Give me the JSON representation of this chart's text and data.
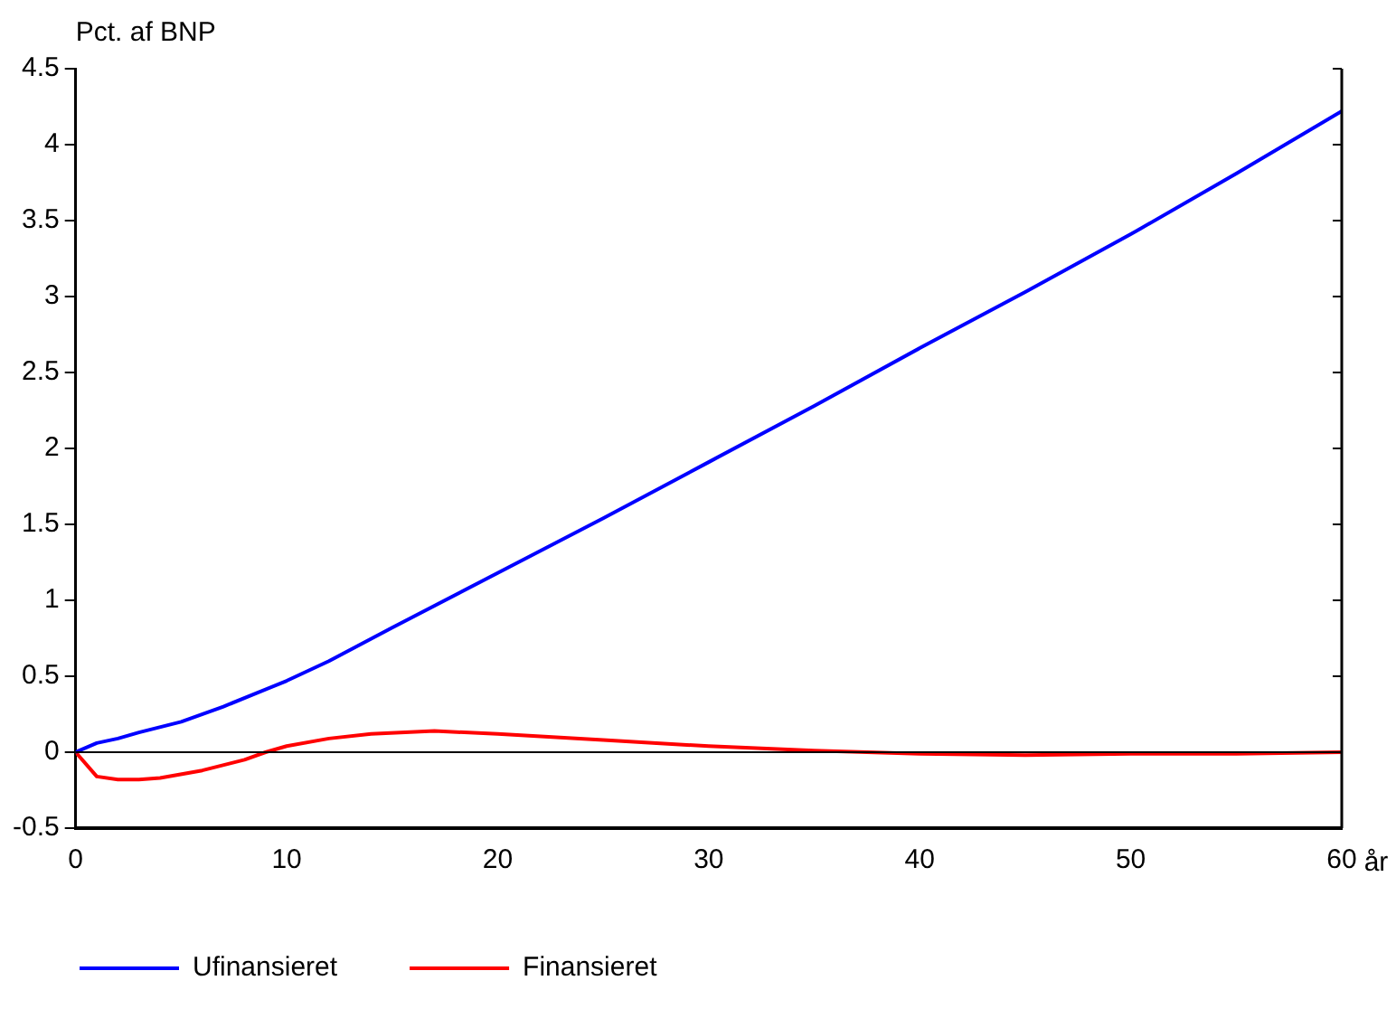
{
  "chart_data": {
    "type": "line",
    "ylabel": "Pct. af BNP",
    "xlabel": "år",
    "xlim": [
      0,
      60
    ],
    "xticks": [
      0,
      10,
      20,
      30,
      40,
      50,
      60
    ],
    "ylim": [
      -0.5,
      4.5
    ],
    "yticks": [
      -0.5,
      0,
      0.5,
      1,
      1.5,
      2,
      2.5,
      3,
      3.5,
      4,
      4.5
    ],
    "grid": false,
    "legend": "bottom",
    "marker": "none",
    "line_style": "solid",
    "ref_lines": [
      {
        "axis": "y",
        "value": 0,
        "color": "#000000"
      }
    ],
    "series": [
      {
        "name": "Ufinansieret",
        "color": "#0000ff",
        "x": [
          0,
          1,
          2,
          3,
          5,
          7,
          10,
          12,
          15,
          20,
          25,
          30,
          35,
          40,
          45,
          50,
          55,
          60
        ],
        "values": [
          0,
          0.06,
          0.09,
          0.13,
          0.2,
          0.3,
          0.47,
          0.6,
          0.82,
          1.18,
          1.54,
          1.91,
          2.28,
          2.66,
          3.03,
          3.41,
          3.81,
          4.22
        ]
      },
      {
        "name": "Finansieret",
        "color": "#ff0000",
        "x": [
          0,
          1,
          2,
          3,
          4,
          6,
          8,
          9,
          10,
          12,
          14,
          17,
          20,
          25,
          30,
          35,
          40,
          45,
          50,
          55,
          60
        ],
        "values": [
          0,
          -0.16,
          -0.18,
          -0.18,
          -0.17,
          -0.12,
          -0.05,
          0,
          0.04,
          0.09,
          0.12,
          0.14,
          0.12,
          0.08,
          0.04,
          0.01,
          -0.01,
          -0.02,
          -0.01,
          -0.01,
          0
        ]
      }
    ]
  }
}
